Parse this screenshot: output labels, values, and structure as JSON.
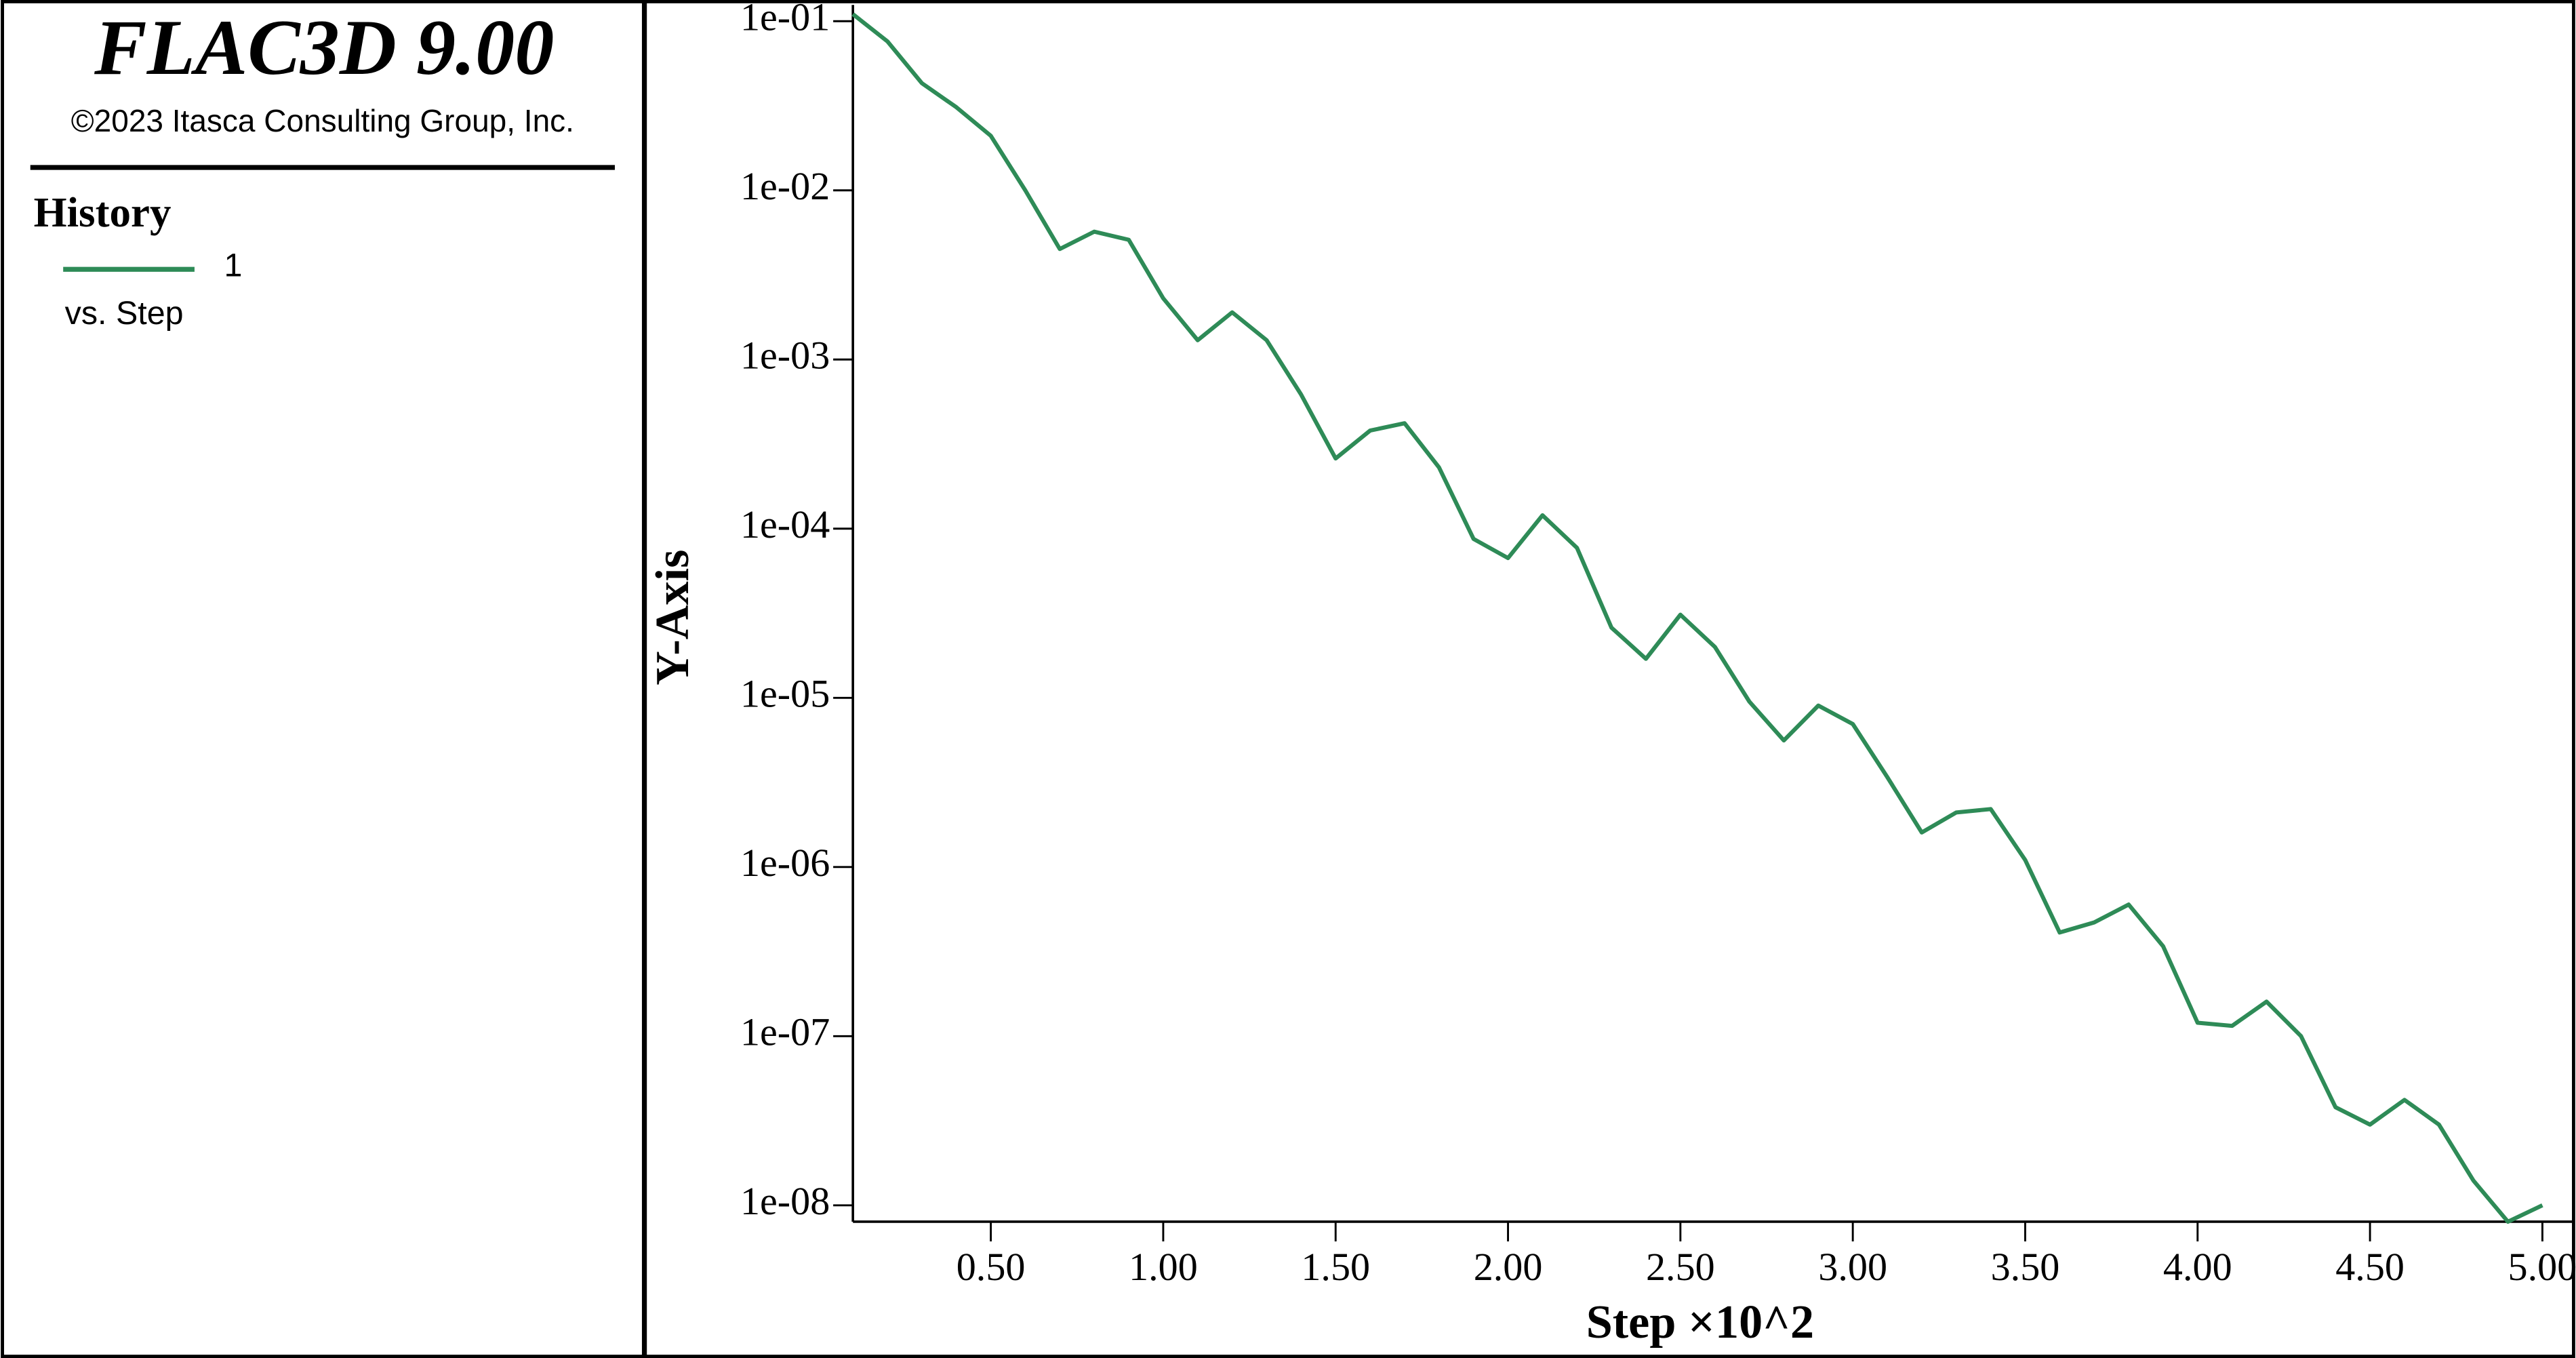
{
  "header": {
    "title": "FLAC3D 9.00",
    "copyright": "©2023 Itasca Consulting Group, Inc."
  },
  "chart_data": {
    "type": "line",
    "legend_title": "History",
    "legend_subtitle": "vs. Step",
    "xlabel": "Step ×10^2",
    "ylabel": "Y-Axis",
    "x": [
      0.1,
      0.2,
      0.3,
      0.4,
      0.5,
      0.6,
      0.7,
      0.8,
      0.9,
      1.0,
      1.1,
      1.2,
      1.3,
      1.4,
      1.5,
      1.6,
      1.7,
      1.8,
      1.9,
      2.0,
      2.1,
      2.2,
      2.3,
      2.4,
      2.5,
      2.6,
      2.7,
      2.8,
      2.9,
      3.0,
      3.1,
      3.2,
      3.3,
      3.4,
      3.5,
      3.6,
      3.7,
      3.8,
      3.9,
      4.0,
      4.1,
      4.2,
      4.3,
      4.4,
      4.5,
      4.6,
      4.7,
      4.8,
      4.9,
      5.0
    ],
    "series": [
      {
        "name": "1",
        "color": "#2e8b57",
        "values": [
          0.11,
          0.076,
          0.043,
          0.031,
          0.021,
          0.01,
          0.0045,
          0.0057,
          0.0051,
          0.0023,
          0.0013,
          0.0019,
          0.0013,
          0.00062,
          0.00026,
          0.00038,
          0.00042,
          0.00023,
          8.7e-05,
          6.7e-05,
          0.00012,
          7.7e-05,
          2.6e-05,
          1.7e-05,
          3.1e-05,
          2e-05,
          9.5e-06,
          5.6e-06,
          9e-06,
          7e-06,
          3.4e-06,
          1.6e-06,
          2.1e-06,
          2.2e-06,
          1.1e-06,
          4.1e-07,
          4.7e-07,
          6e-07,
          3.4e-07,
          1.2e-07,
          1.15e-07,
          1.6e-07,
          1e-07,
          3.8e-08,
          3e-08,
          4.2e-08,
          3e-08,
          1.4e-08,
          8e-09,
          1e-08
        ]
      }
    ],
    "xlim": [
      0.1,
      5.0
    ],
    "xticks": [
      {
        "value": 0.5,
        "label": "0.50"
      },
      {
        "value": 1.0,
        "label": "1.00"
      },
      {
        "value": 1.5,
        "label": "1.50"
      },
      {
        "value": 2.0,
        "label": "2.00"
      },
      {
        "value": 2.5,
        "label": "2.50"
      },
      {
        "value": 3.0,
        "label": "3.00"
      },
      {
        "value": 3.5,
        "label": "3.50"
      },
      {
        "value": 4.0,
        "label": "4.00"
      },
      {
        "value": 4.5,
        "label": "4.50"
      },
      {
        "value": 5.0,
        "label": "5.00"
      }
    ],
    "ylim": [
      8e-09,
      0.122
    ],
    "log_y": true,
    "yticks": [
      {
        "value": 0.1,
        "label": "1e-01"
      },
      {
        "value": 0.01,
        "label": "1e-02"
      },
      {
        "value": 0.001,
        "label": "1e-03"
      },
      {
        "value": 0.0001,
        "label": "1e-04"
      },
      {
        "value": 1e-05,
        "label": "1e-05"
      },
      {
        "value": 1e-06,
        "label": "1e-06"
      },
      {
        "value": 1e-07,
        "label": "1e-07"
      },
      {
        "value": 1e-08,
        "label": "1e-08"
      }
    ]
  }
}
